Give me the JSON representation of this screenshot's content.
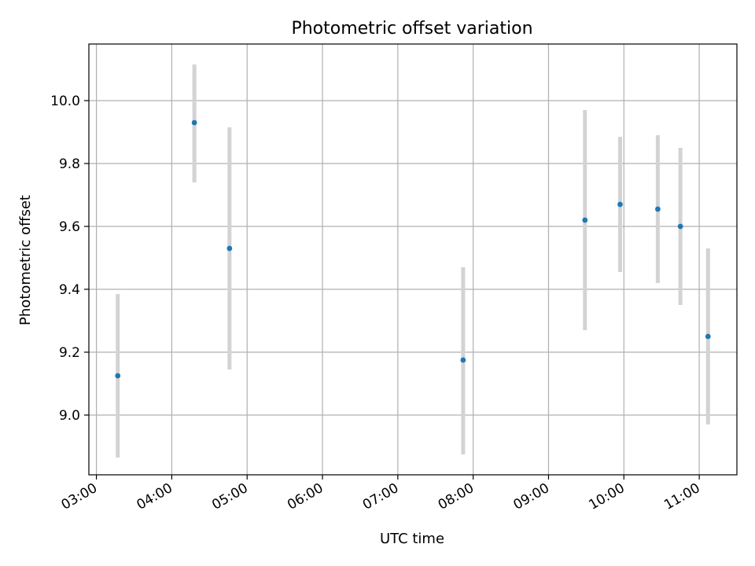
{
  "chart_data": {
    "type": "scatter",
    "title": "Photometric offset variation",
    "xlabel": "UTC time",
    "ylabel": "Photometric offset",
    "x_ticks": [
      "03:00",
      "04:00",
      "05:00",
      "06:00",
      "07:00",
      "08:00",
      "09:00",
      "10:00",
      "11:00"
    ],
    "y_ticks": [
      "9.0",
      "9.2",
      "9.4",
      "9.6",
      "9.8",
      "10.0"
    ],
    "xlim": [
      "02:54",
      "11:30"
    ],
    "ylim": [
      8.81,
      10.18
    ],
    "grid": true,
    "marker_color": "#1f77b4",
    "errorbar_color": "#d3d3d3",
    "points": [
      {
        "x": "03:17",
        "y": 9.125,
        "ylow": 8.865,
        "yhigh": 9.385
      },
      {
        "x": "04:18",
        "y": 9.93,
        "ylow": 9.74,
        "yhigh": 10.115
      },
      {
        "x": "04:46",
        "y": 9.53,
        "ylow": 9.145,
        "yhigh": 9.915
      },
      {
        "x": "07:52",
        "y": 9.175,
        "ylow": 8.875,
        "yhigh": 9.47
      },
      {
        "x": "09:29",
        "y": 9.62,
        "ylow": 9.27,
        "yhigh": 9.97
      },
      {
        "x": "09:57",
        "y": 9.67,
        "ylow": 9.455,
        "yhigh": 9.885
      },
      {
        "x": "10:27",
        "y": 9.655,
        "ylow": 9.42,
        "yhigh": 9.89
      },
      {
        "x": "10:45",
        "y": 9.6,
        "ylow": 9.35,
        "yhigh": 9.85
      },
      {
        "x": "11:07",
        "y": 9.25,
        "ylow": 8.97,
        "yhigh": 9.53
      }
    ]
  }
}
